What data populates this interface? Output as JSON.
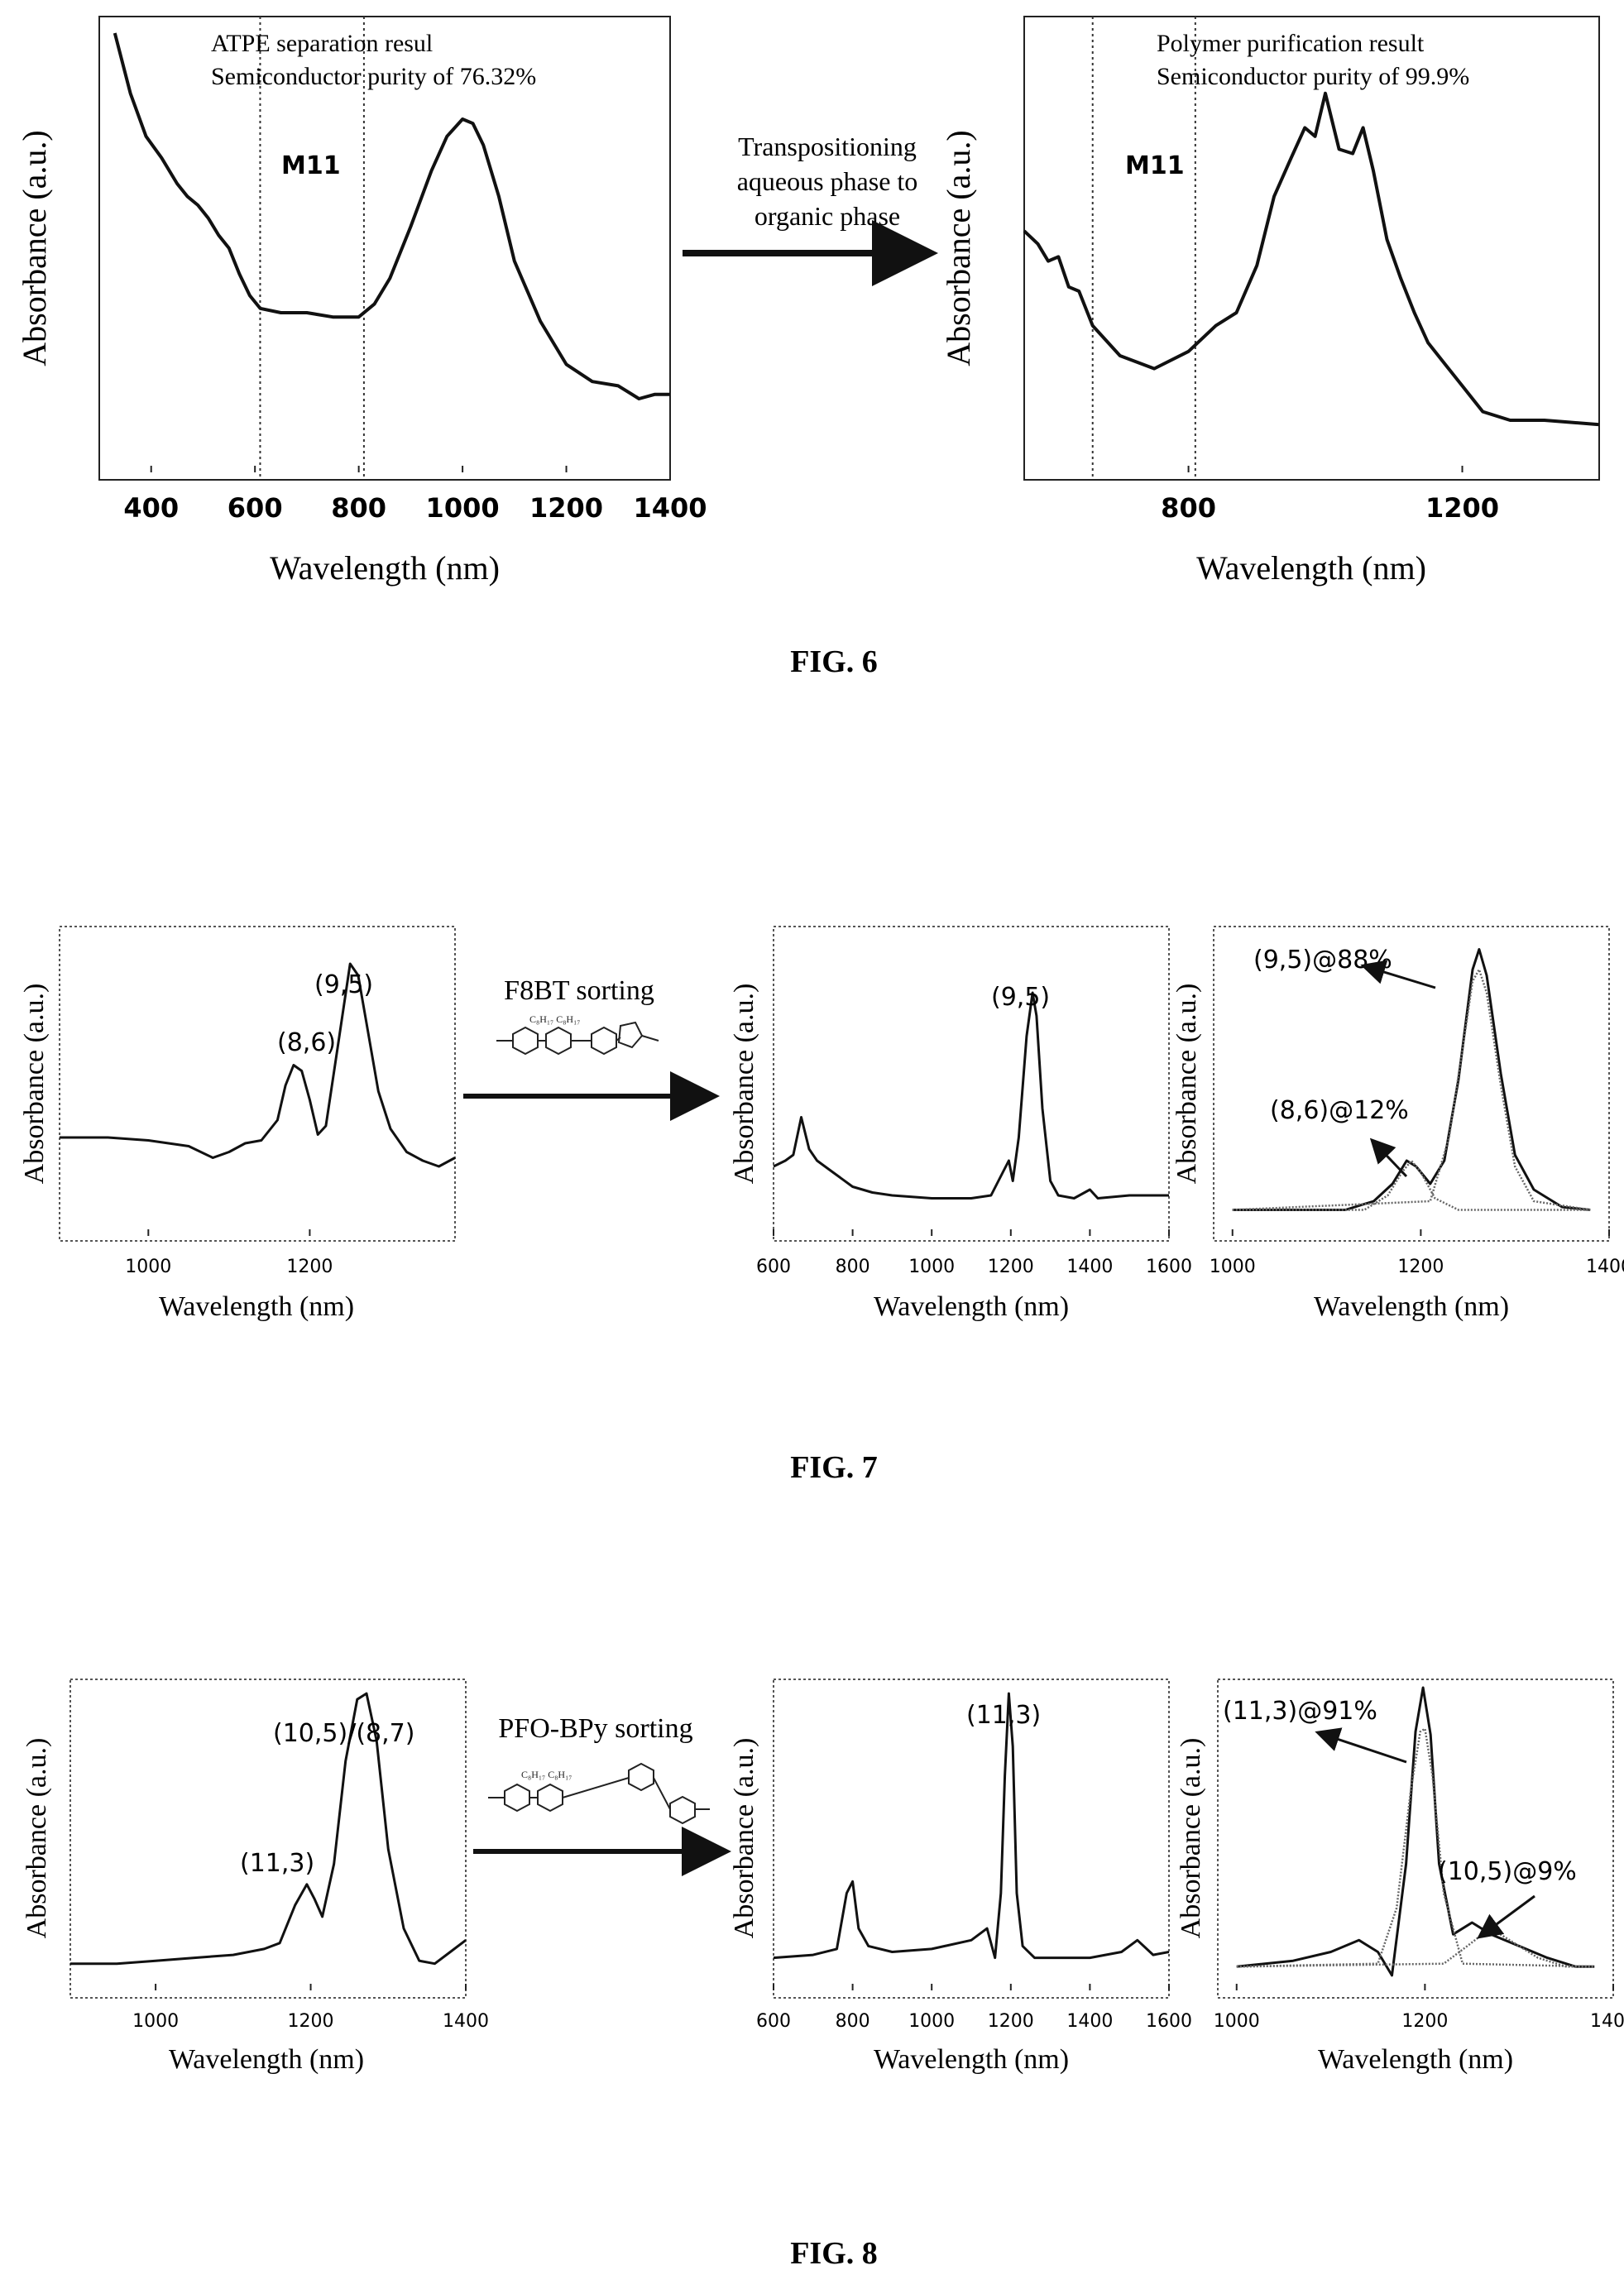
{
  "fig6": {
    "caption": "FIG. 6",
    "arrow_text": [
      "Transpositioning",
      "aqueous phase to",
      "organic phase"
    ],
    "left": {
      "annotation": [
        "ATPE separation resul",
        "Semiconductor purity of 76.32%"
      ],
      "region_label": "M11",
      "xlabel": "Wavelength (nm)",
      "ylabel": "Absorbance (a.u.)",
      "xticks": [
        "400",
        "600",
        "800",
        "1000",
        "1200",
        "1400"
      ]
    },
    "right": {
      "annotation": [
        "Polymer purification result",
        "Semiconductor purity of 99.9%"
      ],
      "region_label": "M11",
      "xlabel": "Wavelength (nm)",
      "ylabel": "Absorbance (a.u.)",
      "xticks": [
        "800",
        "1200"
      ]
    }
  },
  "fig7": {
    "caption": "FIG. 7",
    "arrow_text": "F8BT sorting",
    "panels": [
      {
        "xlabel": "Wavelength (nm)",
        "ylabel": "Absorbance (a.u.)",
        "xticks": [
          "1000",
          "1200"
        ],
        "peaks": [
          "(8,6)",
          "(9,5)"
        ]
      },
      {
        "xlabel": "Wavelength (nm)",
        "ylabel": "Absorbance (a.u.)",
        "xticks": [
          "600",
          "800",
          "1000",
          "1200",
          "1400",
          "1600"
        ],
        "peaks": [
          "(9,5)"
        ]
      },
      {
        "xlabel": "Wavelength (nm)",
        "ylabel": "Absorbance (a.u.)",
        "xticks": [
          "1000",
          "1200",
          "1400"
        ],
        "peaks": [
          "(9,5)@88%",
          "(8,6)@12%"
        ]
      }
    ]
  },
  "fig8": {
    "caption": "FIG. 8",
    "arrow_text": "PFO-BPy sorting",
    "panels": [
      {
        "xlabel": "Wavelength (nm)",
        "ylabel": "Absorbance (a.u.)",
        "xticks": [
          "1000",
          "1200",
          "1400"
        ],
        "peaks": [
          "(11,3)",
          "(10,5)/(8,7)"
        ]
      },
      {
        "xlabel": "Wavelength (nm)",
        "ylabel": "Absorbance (a.u.)",
        "xticks": [
          "600",
          "800",
          "1000",
          "1200",
          "1400",
          "1600"
        ],
        "peaks": [
          "(11,3)"
        ]
      },
      {
        "xlabel": "Wavelength (nm)",
        "ylabel": "Absorbance (a.u.)",
        "xticks": [
          "1000",
          "1200",
          "1400"
        ],
        "peaks": [
          "(11,3)@91%",
          "(10,5)@9%"
        ]
      }
    ]
  },
  "chart_data": [
    {
      "id": "fig6-left",
      "type": "line",
      "xlim": [
        300,
        1400
      ],
      "markers_x": [
        610,
        810
      ],
      "series": [
        {
          "x": [
            330,
            360,
            390,
            420,
            450,
            470,
            490,
            510,
            530,
            550,
            570,
            590,
            610,
            650,
            700,
            750,
            800,
            830,
            860,
            900,
            940,
            970,
            1000,
            1020,
            1040,
            1070,
            1100,
            1150,
            1200,
            1250,
            1300,
            1340,
            1370,
            1400
          ],
          "y": [
            1.0,
            0.86,
            0.76,
            0.71,
            0.65,
            0.62,
            0.6,
            0.57,
            0.53,
            0.5,
            0.44,
            0.39,
            0.36,
            0.35,
            0.35,
            0.34,
            0.34,
            0.37,
            0.43,
            0.55,
            0.68,
            0.76,
            0.8,
            0.79,
            0.74,
            0.62,
            0.47,
            0.33,
            0.23,
            0.19,
            0.18,
            0.15,
            0.16,
            0.16
          ]
        }
      ]
    },
    {
      "id": "fig6-right",
      "type": "line",
      "xlim": [
        560,
        1400
      ],
      "markers_x": [
        660,
        810
      ],
      "series": [
        {
          "x": [
            560,
            580,
            595,
            610,
            625,
            640,
            660,
            700,
            750,
            800,
            840,
            870,
            900,
            925,
            950,
            970,
            985,
            1000,
            1020,
            1040,
            1055,
            1070,
            1090,
            1110,
            1130,
            1150,
            1175,
            1200,
            1230,
            1270,
            1320,
            1400
          ],
          "y": [
            0.54,
            0.51,
            0.47,
            0.48,
            0.41,
            0.4,
            0.32,
            0.25,
            0.22,
            0.26,
            0.32,
            0.35,
            0.46,
            0.62,
            0.71,
            0.78,
            0.76,
            0.86,
            0.73,
            0.72,
            0.78,
            0.68,
            0.52,
            0.43,
            0.35,
            0.28,
            0.23,
            0.18,
            0.12,
            0.1,
            0.1,
            0.09
          ]
        }
      ]
    },
    {
      "id": "fig7-a",
      "type": "line",
      "xlim": [
        890,
        1380
      ],
      "series": [
        {
          "x": [
            890,
            950,
            1000,
            1050,
            1080,
            1100,
            1120,
            1140,
            1160,
            1170,
            1180,
            1190,
            1200,
            1210,
            1220,
            1235,
            1250,
            1260,
            1270,
            1285,
            1300,
            1320,
            1340,
            1360,
            1380
          ],
          "y": [
            0.3,
            0.3,
            0.29,
            0.27,
            0.23,
            0.25,
            0.28,
            0.29,
            0.36,
            0.48,
            0.55,
            0.53,
            0.43,
            0.31,
            0.34,
            0.62,
            0.9,
            0.86,
            0.7,
            0.46,
            0.33,
            0.25,
            0.22,
            0.2,
            0.23
          ]
        }
      ]
    },
    {
      "id": "fig7-b",
      "type": "line",
      "xlim": [
        600,
        1600
      ],
      "series": [
        {
          "x": [
            600,
            630,
            650,
            670,
            690,
            710,
            750,
            800,
            850,
            900,
            1000,
            1100,
            1150,
            1180,
            1195,
            1205,
            1220,
            1240,
            1255,
            1265,
            1280,
            1300,
            1320,
            1360,
            1400,
            1420,
            1500,
            1600
          ],
          "y": [
            0.2,
            0.22,
            0.24,
            0.37,
            0.26,
            0.22,
            0.18,
            0.13,
            0.11,
            0.1,
            0.09,
            0.09,
            0.1,
            0.18,
            0.22,
            0.15,
            0.3,
            0.65,
            0.8,
            0.72,
            0.4,
            0.15,
            0.1,
            0.09,
            0.12,
            0.09,
            0.1,
            0.1
          ]
        }
      ]
    },
    {
      "id": "fig7-c",
      "type": "line",
      "xlim": [
        980,
        1400
      ],
      "series": [
        {
          "name": "total",
          "x": [
            1000,
            1120,
            1150,
            1170,
            1185,
            1195,
            1210,
            1225,
            1240,
            1255,
            1262,
            1270,
            1285,
            1300,
            1320,
            1350,
            1380
          ],
          "y": [
            0.05,
            0.05,
            0.08,
            0.14,
            0.22,
            0.2,
            0.14,
            0.22,
            0.5,
            0.88,
            0.95,
            0.86,
            0.52,
            0.24,
            0.12,
            0.06,
            0.05
          ]
        },
        {
          "name": "fit-(8,6)",
          "x": [
            1000,
            1140,
            1165,
            1180,
            1190,
            1200,
            1215,
            1240,
            1380
          ],
          "y": [
            0.05,
            0.05,
            0.1,
            0.18,
            0.22,
            0.18,
            0.09,
            0.05,
            0.05
          ]
        },
        {
          "name": "fit-(9,5)",
          "x": [
            1000,
            1210,
            1230,
            1245,
            1255,
            1262,
            1270,
            1285,
            1300,
            1320,
            1380
          ],
          "y": [
            0.05,
            0.08,
            0.3,
            0.62,
            0.84,
            0.88,
            0.8,
            0.48,
            0.2,
            0.08,
            0.05
          ]
        }
      ]
    },
    {
      "id": "fig8-a",
      "type": "line",
      "xlim": [
        890,
        1400
      ],
      "series": [
        {
          "x": [
            890,
            950,
            1000,
            1050,
            1100,
            1140,
            1160,
            1180,
            1195,
            1205,
            1215,
            1230,
            1245,
            1260,
            1272,
            1285,
            1300,
            1320,
            1340,
            1360,
            1380,
            1400
          ],
          "y": [
            0.06,
            0.06,
            0.07,
            0.08,
            0.09,
            0.11,
            0.13,
            0.26,
            0.33,
            0.28,
            0.22,
            0.4,
            0.75,
            0.96,
            0.98,
            0.82,
            0.45,
            0.18,
            0.07,
            0.06,
            0.1,
            0.14
          ]
        }
      ]
    },
    {
      "id": "fig8-b",
      "type": "line",
      "xlim": [
        600,
        1600
      ],
      "series": [
        {
          "x": [
            600,
            700,
            760,
            785,
            800,
            815,
            840,
            900,
            1000,
            1100,
            1140,
            1160,
            1175,
            1185,
            1195,
            1205,
            1215,
            1230,
            1260,
            1300,
            1400,
            1480,
            1520,
            1560,
            1600
          ],
          "y": [
            0.08,
            0.09,
            0.11,
            0.3,
            0.34,
            0.18,
            0.12,
            0.1,
            0.11,
            0.14,
            0.18,
            0.08,
            0.3,
            0.7,
            0.98,
            0.8,
            0.3,
            0.12,
            0.08,
            0.08,
            0.08,
            0.1,
            0.14,
            0.09,
            0.1
          ]
        }
      ]
    },
    {
      "id": "fig8-c",
      "type": "line",
      "xlim": [
        980,
        1400
      ],
      "series": [
        {
          "name": "total",
          "x": [
            1000,
            1060,
            1100,
            1130,
            1150,
            1165,
            1180,
            1190,
            1198,
            1206,
            1215,
            1230,
            1250,
            1270,
            1300,
            1330,
            1360,
            1380
          ],
          "y": [
            0.05,
            0.07,
            0.1,
            0.14,
            0.1,
            0.02,
            0.4,
            0.85,
            1.0,
            0.84,
            0.4,
            0.16,
            0.2,
            0.16,
            0.12,
            0.08,
            0.05,
            0.05
          ]
        },
        {
          "name": "fit-(11,3)",
          "x": [
            1000,
            1150,
            1170,
            1185,
            1195,
            1200,
            1208,
            1220,
            1240,
            1380
          ],
          "y": [
            0.05,
            0.06,
            0.25,
            0.65,
            0.85,
            0.86,
            0.7,
            0.3,
            0.06,
            0.05
          ]
        },
        {
          "name": "fit-(10,5)",
          "x": [
            1000,
            1220,
            1245,
            1265,
            1280,
            1300,
            1320,
            1350,
            1380
          ],
          "y": [
            0.05,
            0.06,
            0.12,
            0.17,
            0.16,
            0.12,
            0.08,
            0.05,
            0.05
          ]
        }
      ]
    }
  ]
}
